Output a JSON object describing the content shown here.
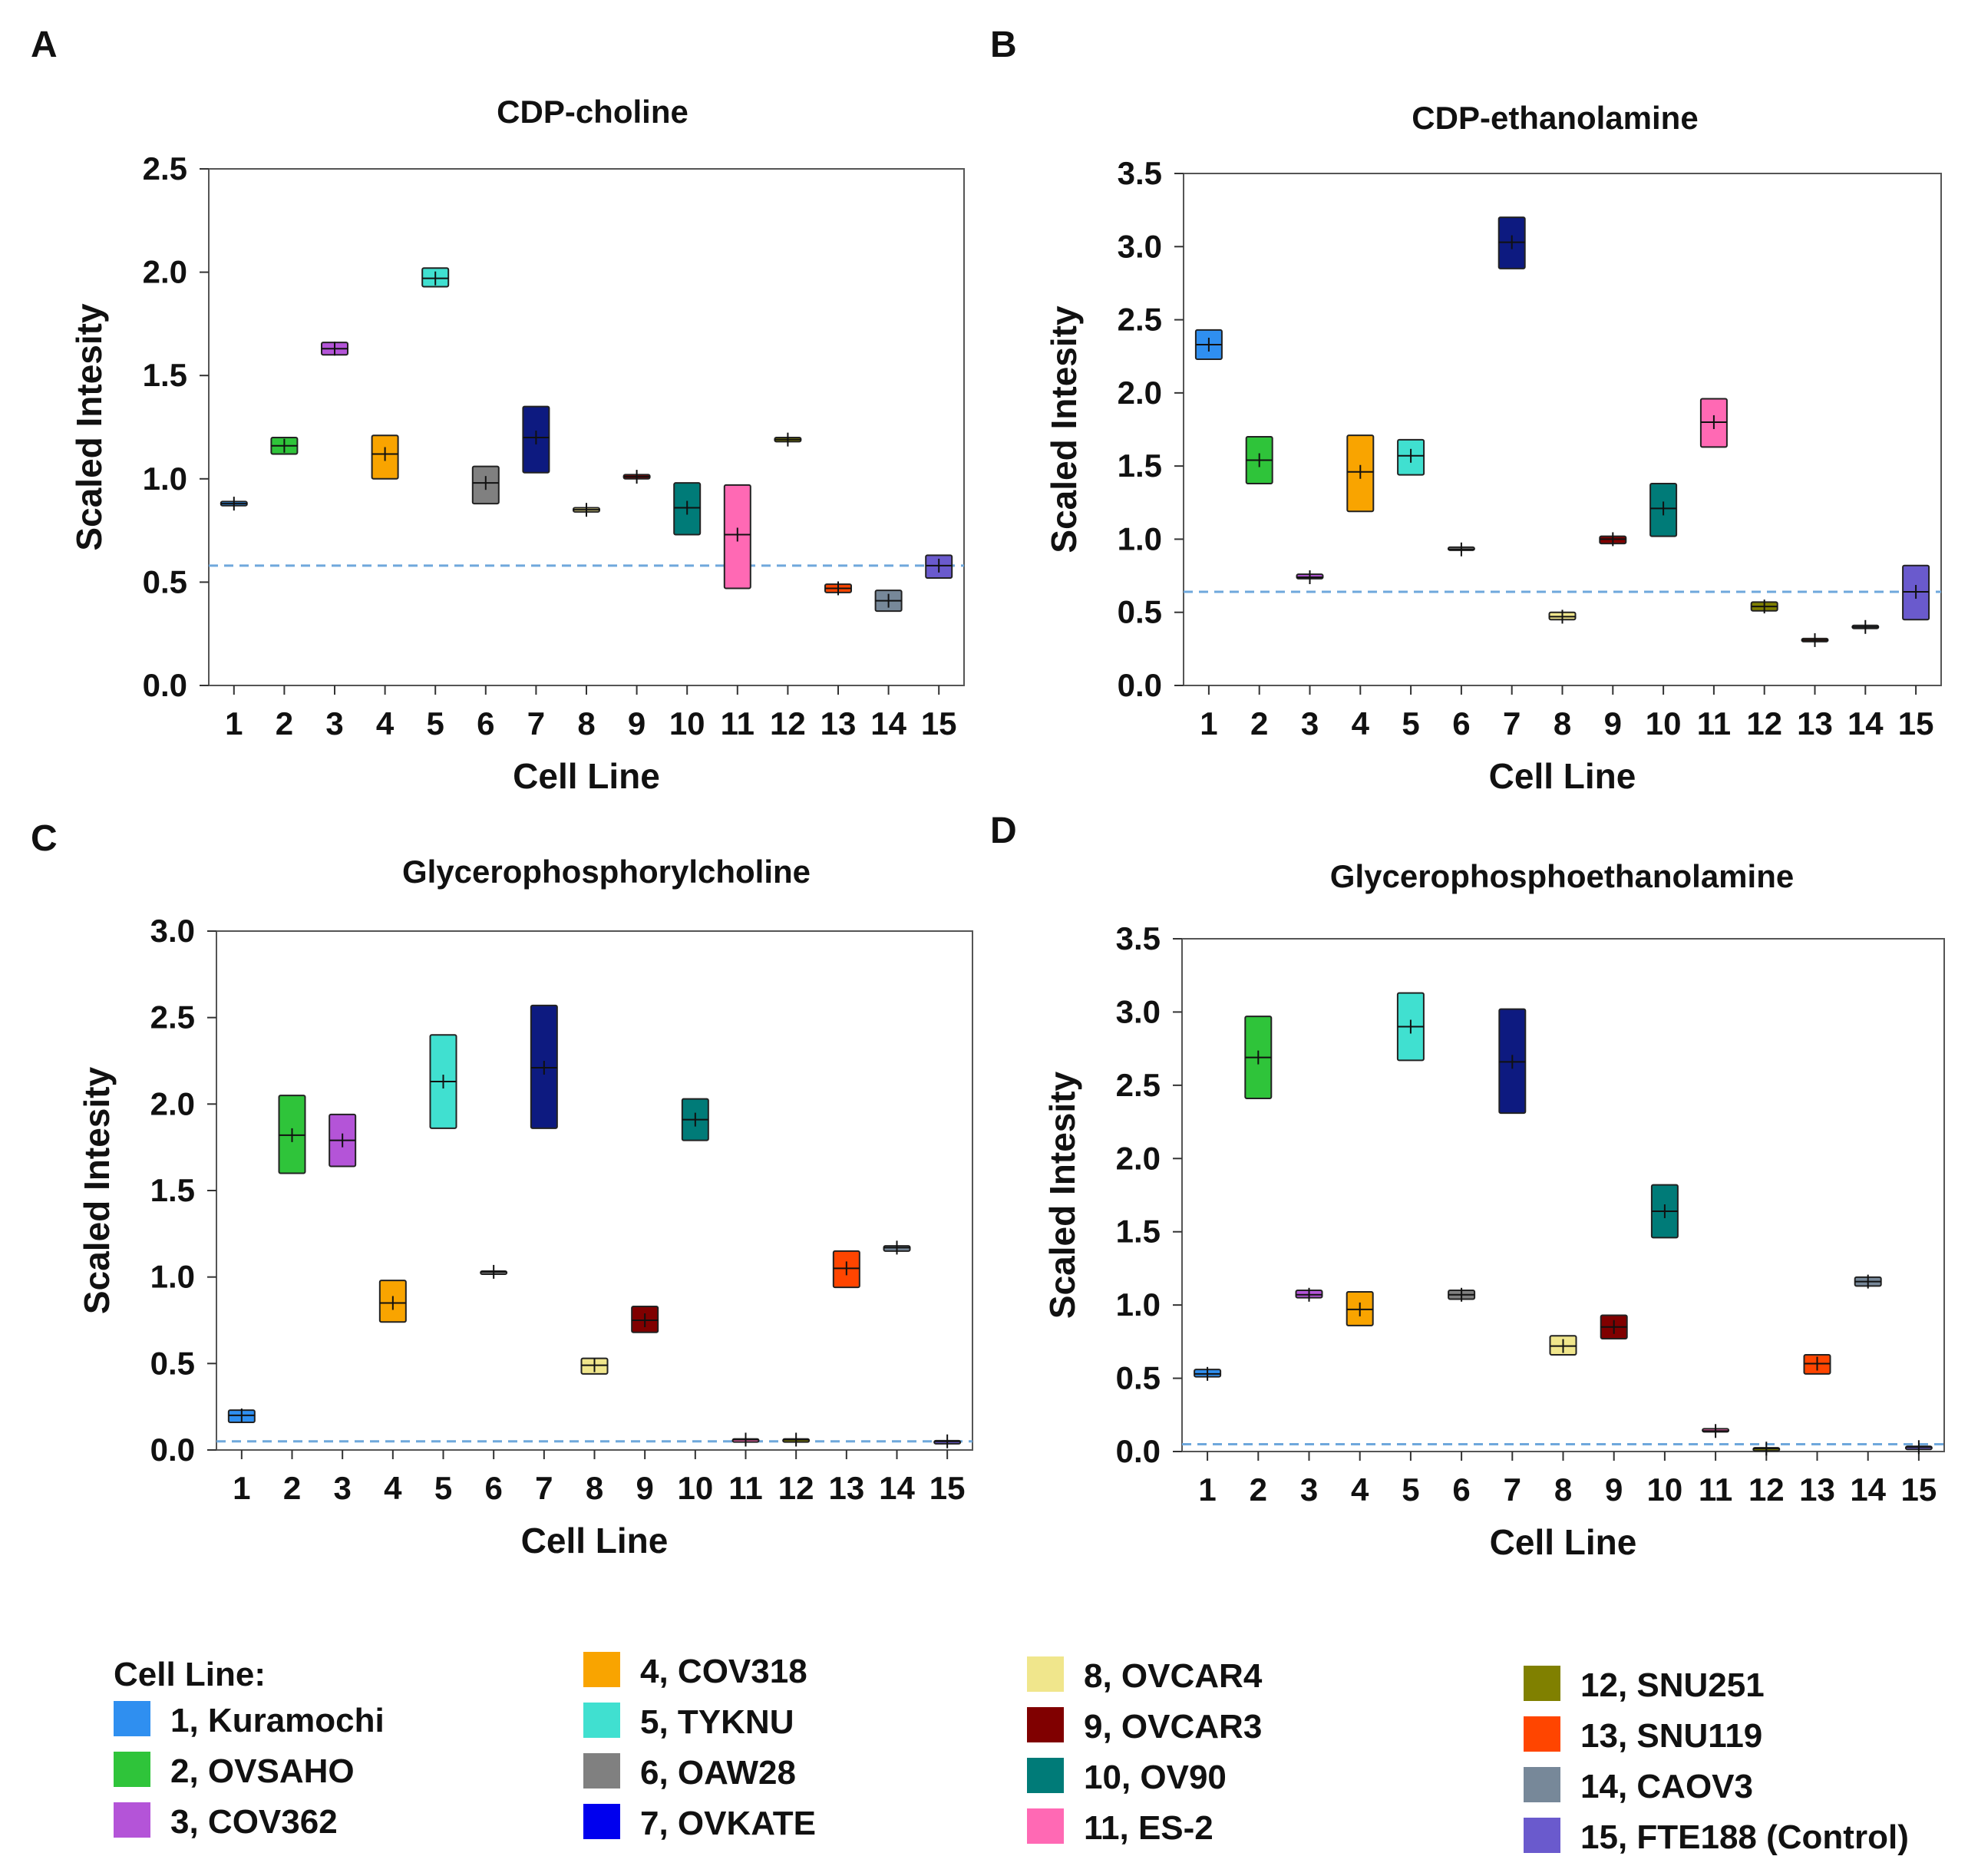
{
  "panels": [
    "A",
    "B",
    "C",
    "D"
  ],
  "legend": {
    "title": "Cell Line:",
    "items": [
      {
        "label": "1, Kuramochi",
        "color": "#2f8ff0"
      },
      {
        "label": "2, OVSAHO",
        "color": "#2fc43a"
      },
      {
        "label": "3, COV362",
        "color": "#b454d8"
      },
      {
        "label": "4, COV318",
        "color": "#f9a400"
      },
      {
        "label": "5, TYKNU",
        "color": "#40e0d0"
      },
      {
        "label": "6, OAW28",
        "color": "#808080"
      },
      {
        "label": "7, OVKATE",
        "color": "#0000ee"
      },
      {
        "label": "8,   OVCAR4",
        "color": "#f0e68c"
      },
      {
        "label": "9,   OVCAR3",
        "color": "#800000"
      },
      {
        "label": "10, OV90",
        "color": "#007b78"
      },
      {
        "label": "11, ES-2",
        "color": "#ff69b4"
      },
      {
        "label": "12, SNU251",
        "color": "#808000"
      },
      {
        "label": "13, SNU119",
        "color": "#ff4500"
      },
      {
        "label": "14, CAOV3",
        "color": "#778899"
      },
      {
        "label": "15, FTE188 (Control)",
        "color": "#6a5acd"
      }
    ]
  },
  "box_colors": [
    "#2f8ff0",
    "#2fc43a",
    "#b454d8",
    "#f9a400",
    "#40e0d0",
    "#808080",
    "#0d1a80",
    "#f0e68c",
    "#800000",
    "#007b78",
    "#ff69b4",
    "#808000",
    "#ff4500",
    "#778899",
    "#6a5acd"
  ],
  "reference_line_color": "#6fa8dc",
  "chart_data": [
    {
      "type": "box",
      "title": "CDP-choline",
      "xlabel": "Cell Line",
      "ylabel": "Scaled Intesity",
      "categories": [
        "1",
        "2",
        "3",
        "4",
        "5",
        "6",
        "7",
        "8",
        "9",
        "10",
        "11",
        "12",
        "13",
        "14",
        "15"
      ],
      "ylim": [
        0,
        2.5
      ],
      "yticks": [
        "0.0",
        "0.5",
        "1.0",
        "1.5",
        "2.0",
        "2.5"
      ],
      "reference_line": 0.58,
      "boxes": [
        {
          "low": 0.87,
          "high": 0.89,
          "median": 0.88
        },
        {
          "low": 1.12,
          "high": 1.2,
          "median": 1.16
        },
        {
          "low": 1.6,
          "high": 1.66,
          "median": 1.63
        },
        {
          "low": 1.0,
          "high": 1.21,
          "median": 1.12
        },
        {
          "low": 1.93,
          "high": 2.02,
          "median": 1.97
        },
        {
          "low": 0.88,
          "high": 1.06,
          "median": 0.98
        },
        {
          "low": 1.03,
          "high": 1.35,
          "median": 1.2
        },
        {
          "low": 0.84,
          "high": 0.86,
          "median": 0.85
        },
        {
          "low": 1.0,
          "high": 1.02,
          "median": 1.01
        },
        {
          "low": 0.73,
          "high": 0.98,
          "median": 0.86
        },
        {
          "low": 0.47,
          "high": 0.97,
          "median": 0.73
        },
        {
          "low": 1.18,
          "high": 1.2,
          "median": 1.19
        },
        {
          "low": 0.45,
          "high": 0.49,
          "median": 0.47
        },
        {
          "low": 0.36,
          "high": 0.46,
          "median": 0.41
        },
        {
          "low": 0.52,
          "high": 0.63,
          "median": 0.58
        }
      ]
    },
    {
      "type": "box",
      "title": "CDP-ethanolamine",
      "xlabel": "Cell Line",
      "ylabel": "Scaled Intesity",
      "categories": [
        "1",
        "2",
        "3",
        "4",
        "5",
        "6",
        "7",
        "8",
        "9",
        "10",
        "11",
        "12",
        "13",
        "14",
        "15"
      ],
      "ylim": [
        0,
        3.5
      ],
      "yticks": [
        "0.0",
        "0.5",
        "1.0",
        "1.5",
        "2.0",
        "2.5",
        "3.0",
        "3.5"
      ],
      "reference_line": 0.64,
      "boxes": [
        {
          "low": 2.23,
          "high": 2.43,
          "median": 2.33
        },
        {
          "low": 1.38,
          "high": 1.7,
          "median": 1.54
        },
        {
          "low": 0.73,
          "high": 0.76,
          "median": 0.74
        },
        {
          "low": 1.19,
          "high": 1.71,
          "median": 1.46
        },
        {
          "low": 1.44,
          "high": 1.68,
          "median": 1.57
        },
        {
          "low": 0.93,
          "high": 0.94,
          "median": 0.93
        },
        {
          "low": 2.85,
          "high": 3.2,
          "median": 3.03
        },
        {
          "low": 0.45,
          "high": 0.5,
          "median": 0.47
        },
        {
          "low": 0.97,
          "high": 1.02,
          "median": 1.0
        },
        {
          "low": 1.02,
          "high": 1.38,
          "median": 1.21
        },
        {
          "low": 1.63,
          "high": 1.96,
          "median": 1.8
        },
        {
          "low": 0.51,
          "high": 0.57,
          "median": 0.54
        },
        {
          "low": 0.3,
          "high": 0.32,
          "median": 0.31
        },
        {
          "low": 0.39,
          "high": 0.41,
          "median": 0.4
        },
        {
          "low": 0.45,
          "high": 0.82,
          "median": 0.64
        }
      ]
    },
    {
      "type": "box",
      "title": "Glycerophosphorylcholine",
      "xlabel": "Cell Line",
      "ylabel": "Scaled Intesity",
      "categories": [
        "1",
        "2",
        "3",
        "4",
        "5",
        "6",
        "7",
        "8",
        "9",
        "10",
        "11",
        "12",
        "13",
        "14",
        "15"
      ],
      "ylim": [
        0,
        3.0
      ],
      "yticks": [
        "0.0",
        "0.5",
        "1.0",
        "1.5",
        "2.0",
        "2.5",
        "3.0"
      ],
      "reference_line": 0.05,
      "boxes": [
        {
          "low": 0.16,
          "high": 0.23,
          "median": 0.2
        },
        {
          "low": 1.6,
          "high": 2.05,
          "median": 1.82
        },
        {
          "low": 1.64,
          "high": 1.94,
          "median": 1.79
        },
        {
          "low": 0.74,
          "high": 0.98,
          "median": 0.85
        },
        {
          "low": 1.86,
          "high": 2.4,
          "median": 2.13
        },
        {
          "low": 1.02,
          "high": 1.03,
          "median": 1.03
        },
        {
          "low": 1.86,
          "high": 2.57,
          "median": 2.21
        },
        {
          "low": 0.44,
          "high": 0.53,
          "median": 0.49
        },
        {
          "low": 0.68,
          "high": 0.83,
          "median": 0.75
        },
        {
          "low": 1.79,
          "high": 2.03,
          "median": 1.91
        },
        {
          "low": 0.05,
          "high": 0.06,
          "median": 0.06
        },
        {
          "low": 0.05,
          "high": 0.06,
          "median": 0.06
        },
        {
          "low": 0.94,
          "high": 1.15,
          "median": 1.05
        },
        {
          "low": 1.15,
          "high": 1.18,
          "median": 1.17
        },
        {
          "low": 0.04,
          "high": 0.05,
          "median": 0.05
        }
      ]
    },
    {
      "type": "box",
      "title": "Glycerophosphoethanolamine",
      "xlabel": "Cell Line",
      "ylabel": "Scaled Intesity",
      "categories": [
        "1",
        "2",
        "3",
        "4",
        "5",
        "6",
        "7",
        "8",
        "9",
        "10",
        "11",
        "12",
        "13",
        "14",
        "15"
      ],
      "ylim": [
        0,
        3.5
      ],
      "yticks": [
        "0.0",
        "0.5",
        "1.0",
        "1.5",
        "2.0",
        "2.5",
        "3.0",
        "3.5"
      ],
      "reference_line": 0.05,
      "boxes": [
        {
          "low": 0.51,
          "high": 0.56,
          "median": 0.53
        },
        {
          "low": 2.41,
          "high": 2.97,
          "median": 2.69
        },
        {
          "low": 1.05,
          "high": 1.1,
          "median": 1.07
        },
        {
          "low": 0.86,
          "high": 1.09,
          "median": 0.97
        },
        {
          "low": 2.67,
          "high": 3.13,
          "median": 2.9
        },
        {
          "low": 1.04,
          "high": 1.1,
          "median": 1.07
        },
        {
          "low": 2.31,
          "high": 3.02,
          "median": 2.66
        },
        {
          "low": 0.66,
          "high": 0.79,
          "median": 0.72
        },
        {
          "low": 0.77,
          "high": 0.93,
          "median": 0.85
        },
        {
          "low": 1.46,
          "high": 1.82,
          "median": 1.64
        },
        {
          "low": 0.14,
          "high": 0.15,
          "median": 0.14
        },
        {
          "low": 0.01,
          "high": 0.02,
          "median": 0.02
        },
        {
          "low": 0.53,
          "high": 0.66,
          "median": 0.6
        },
        {
          "low": 1.13,
          "high": 1.19,
          "median": 1.16
        },
        {
          "low": 0.02,
          "high": 0.03,
          "median": 0.03
        }
      ]
    }
  ]
}
